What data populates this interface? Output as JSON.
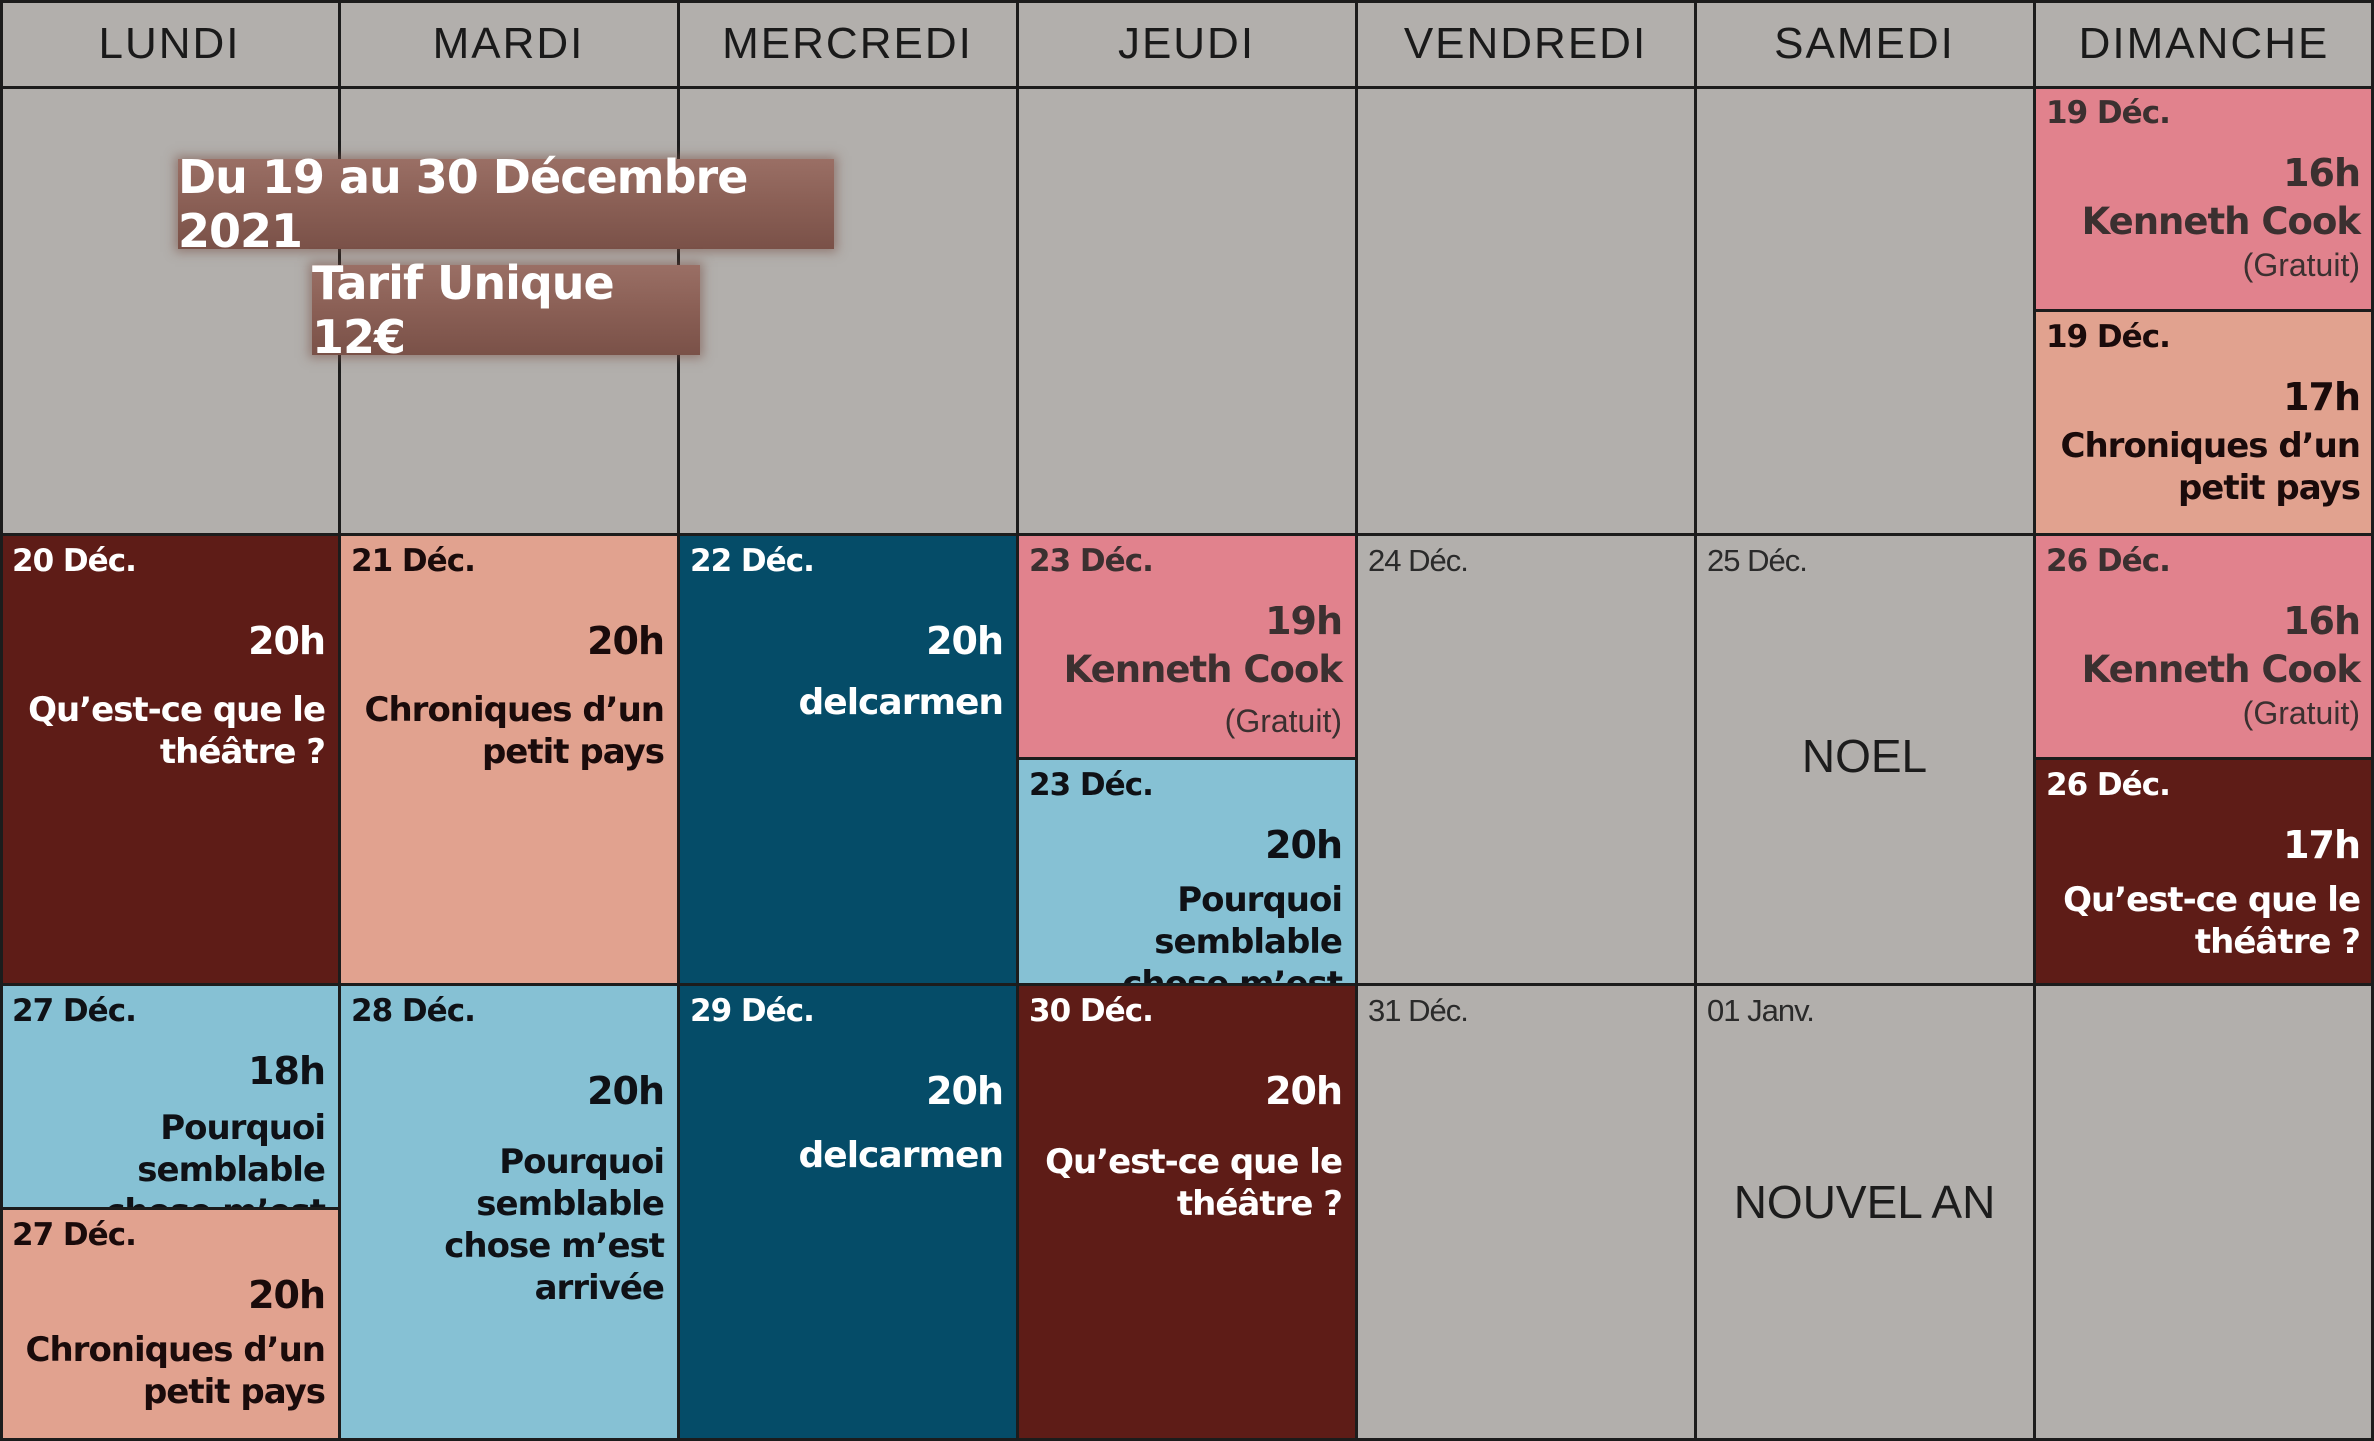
{
  "headers": [
    "LUNDI",
    "MARDI",
    "MERCREDI",
    "JEUDI",
    "VENDREDI",
    "SAMEDI",
    "DIMANCHE"
  ],
  "banner": {
    "period": "Du 19 au 30 Décembre 2021",
    "price": "Tarif Unique 12€"
  },
  "week1": {
    "sun_a": {
      "date": "19 Déc.",
      "time": "16h",
      "title": "Kenneth Cook",
      "note": "(Gratuit)"
    },
    "sun_b": {
      "date": "19 Déc.",
      "time": "17h",
      "title_line1": "Chroniques d’un",
      "title_line2": "petit pays"
    }
  },
  "week2": {
    "mon": {
      "date": "20 Déc.",
      "time": "20h",
      "title_line1": "Qu’est-ce que le",
      "title_line2": "théâtre ?"
    },
    "tue": {
      "date": "21 Déc.",
      "time": "20h",
      "title_line1": "Chroniques d’un",
      "title_line2": "petit pays"
    },
    "wed": {
      "date": "22 Déc.",
      "time": "20h",
      "title": "delcarmen"
    },
    "thu_a": {
      "date": "23 Déc.",
      "time": "19h",
      "title": "Kenneth Cook",
      "note": "(Gratuit)"
    },
    "thu_b": {
      "date": "23 Déc.",
      "time": "20h",
      "title_line1": "Pourquoi semblable",
      "title_line2": "chose m’est arrivée"
    },
    "fri": {
      "date": "24 Déc."
    },
    "sat": {
      "date": "25 Déc.",
      "label": "NOEL"
    },
    "sun_a": {
      "date": "26 Déc.",
      "time": "16h",
      "title": "Kenneth Cook",
      "note": "(Gratuit)"
    },
    "sun_b": {
      "date": "26 Déc.",
      "time": "17h",
      "title_line1": "Qu’est-ce que le",
      "title_line2": "théâtre ?"
    }
  },
  "week3": {
    "mon_a": {
      "date": "27 Déc.",
      "time": "18h",
      "title_line1": "Pourquoi semblable",
      "title_line2": "chose m’est arrivée"
    },
    "mon_b": {
      "date": "27 Déc.",
      "time": "20h",
      "title_line1": "Chroniques d’un",
      "title_line2": "petit pays"
    },
    "tue": {
      "date": "28 Déc.",
      "time": "20h",
      "title_line1": "Pourquoi semblable",
      "title_line2": "chose m’est arrivée"
    },
    "wed": {
      "date": "29 Déc.",
      "time": "20h",
      "title": "delcarmen"
    },
    "thu": {
      "date": "30 Déc.",
      "time": "20h",
      "title_line1": "Qu’est-ce que le",
      "title_line2": "théâtre ?"
    },
    "fri": {
      "date": "31 Déc."
    },
    "sat": {
      "date": "01 Janv.",
      "label": "NOUVEL AN"
    }
  },
  "colors": {
    "background": "#b2afac",
    "maroon": "#5e1c17",
    "salmon": "#e1a28f",
    "teal": "#054c68",
    "pink": "#e1828d",
    "light_blue": "#86c1d4",
    "banner": "#8a5f55"
  }
}
